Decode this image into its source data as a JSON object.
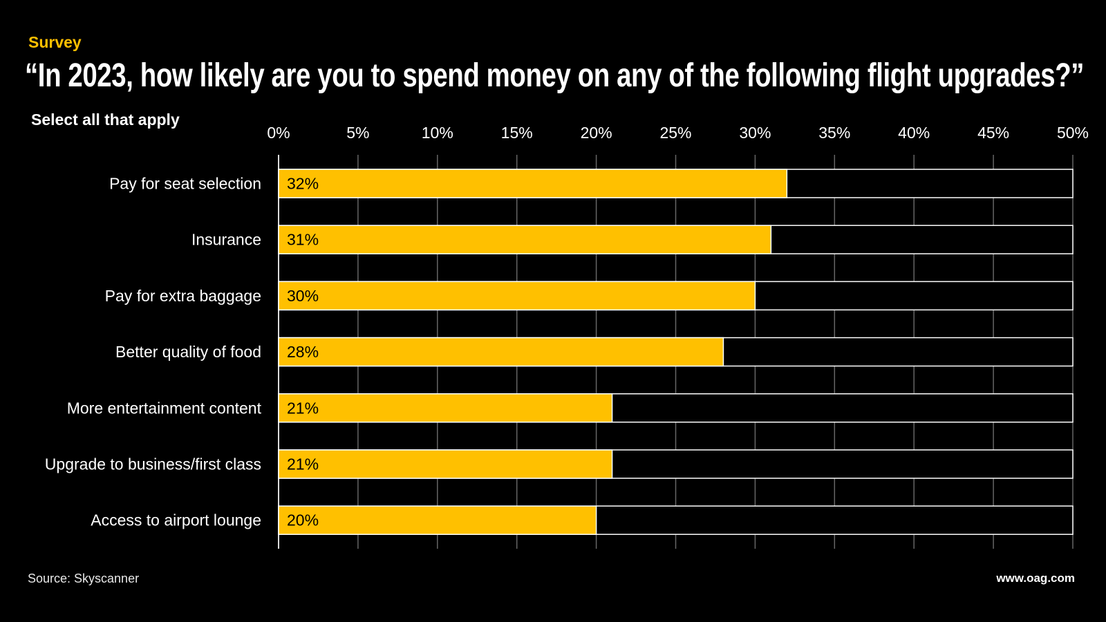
{
  "header": {
    "kicker": "Survey",
    "title": "“In 2023, how likely are you to spend money on any of the following flight upgrades?”",
    "subtitle": "Select all that apply"
  },
  "footer": {
    "source": "Source: Skyscanner",
    "website": "www.oag.com"
  },
  "colors": {
    "bar": "#FFC000",
    "background": "#000000",
    "grid": "#666666",
    "row_border": "#ffffff"
  },
  "chart_data": {
    "type": "bar",
    "orientation": "horizontal",
    "categories": [
      "Pay for seat selection",
      "Insurance",
      "Pay for extra baggage",
      "Better quality of food",
      "More entertainment content",
      "Upgrade to business/first class",
      "Access to airport lounge"
    ],
    "values": [
      32,
      31,
      30,
      28,
      21,
      21,
      20
    ],
    "value_labels": [
      "32%",
      "31%",
      "30%",
      "28%",
      "21%",
      "21%",
      "20%"
    ],
    "xlim": [
      0,
      50
    ],
    "x_ticks": [
      0,
      5,
      10,
      15,
      20,
      25,
      30,
      35,
      40,
      45,
      50
    ],
    "x_tick_labels": [
      "0%",
      "5%",
      "10%",
      "15%",
      "20%",
      "25%",
      "30%",
      "35%",
      "40%",
      "45%",
      "50%"
    ],
    "axis_position": "top",
    "grid": true,
    "legend": "none"
  }
}
